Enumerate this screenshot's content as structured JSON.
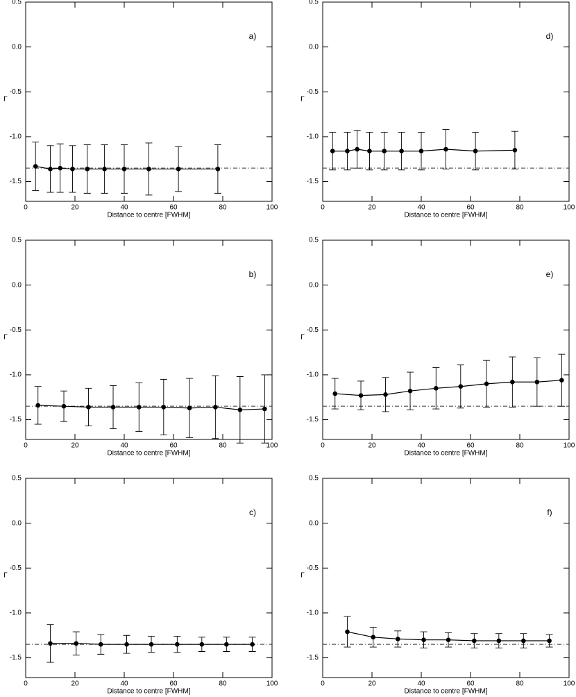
{
  "chart_data": [
    {
      "type": "line",
      "label": "a)",
      "xlabel": "Distance to centre [FWHM]",
      "ylabel": "Γ",
      "x": [
        4,
        10,
        14,
        19,
        25,
        32,
        40,
        50,
        62,
        78
      ],
      "values": [
        -1.33,
        -1.36,
        -1.35,
        -1.36,
        -1.36,
        -1.36,
        -1.36,
        -1.36,
        -1.36,
        -1.36
      ],
      "errors": [
        0.27,
        0.26,
        0.27,
        0.26,
        0.27,
        0.27,
        0.27,
        0.29,
        0.25,
        0.27
      ],
      "color": "#000000",
      "hline": -1.35,
      "xlim": [
        0,
        100
      ],
      "ylim": [
        -1.72,
        0.5
      ],
      "xticks": [
        0,
        20,
        40,
        60,
        80,
        100
      ],
      "yticks": [
        0.5,
        {
          "value": 0,
          "label": "0.0"
        },
        -0.5,
        {
          "value": -1,
          "label": "-1.0"
        },
        -1.5
      ]
    },
    {
      "type": "line",
      "label": "b)",
      "xlabel": "Distance to centre [FWHM]",
      "ylabel": "Γ",
      "x": [
        5,
        15.5,
        25.5,
        35.5,
        46,
        56,
        66.5,
        77,
        87,
        97
      ],
      "values": [
        -1.34,
        -1.35,
        -1.36,
        -1.36,
        -1.36,
        -1.36,
        -1.37,
        -1.36,
        -1.39,
        -1.38
      ],
      "errors": [
        0.21,
        0.17,
        0.21,
        0.24,
        0.27,
        0.31,
        0.33,
        0.35,
        0.37,
        0.38
      ],
      "color": "#000000",
      "hline": -1.35,
      "xlim": [
        0,
        100
      ],
      "ylim": [
        -1.72,
        0.5
      ],
      "xticks": [
        0,
        20,
        40,
        60,
        80,
        100
      ],
      "yticks": [
        0.5,
        {
          "value": 0,
          "label": "0.0"
        },
        -0.5,
        {
          "value": -1,
          "label": "-1.0"
        },
        -1.5
      ]
    },
    {
      "type": "line",
      "label": "c)",
      "xlabel": "Distance to centre [FWHM]",
      "ylabel": "Γ",
      "x": [
        10,
        20.5,
        30.5,
        41,
        51,
        61.5,
        71.5,
        81.5,
        92
      ],
      "values": [
        -1.34,
        -1.34,
        -1.35,
        -1.35,
        -1.35,
        -1.35,
        -1.35,
        -1.35,
        -1.35
      ],
      "errors": [
        0.21,
        0.13,
        0.11,
        0.1,
        0.09,
        0.09,
        0.08,
        0.08,
        0.08
      ],
      "color": "#000000",
      "hline": -1.35,
      "xlim": [
        0,
        100
      ],
      "ylim": [
        -1.72,
        0.5
      ],
      "xticks": [
        0,
        20,
        40,
        60,
        80,
        100
      ],
      "yticks": [
        0.5,
        {
          "value": 0,
          "label": "0.0"
        },
        -0.5,
        {
          "value": -1,
          "label": "-1.0"
        },
        -1.5
      ]
    },
    {
      "type": "line",
      "label": "d)",
      "xlabel": "Distance to centre [FWHM]",
      "ylabel": "Γ",
      "x": [
        4,
        10,
        14,
        19,
        25,
        32,
        40,
        50,
        62,
        78
      ],
      "values": [
        -1.16,
        -1.16,
        -1.14,
        -1.16,
        -1.16,
        -1.16,
        -1.16,
        -1.14,
        -1.16,
        -1.15
      ],
      "errors": [
        0.21,
        0.21,
        0.21,
        0.21,
        0.21,
        0.21,
        0.21,
        0.22,
        0.21,
        0.21
      ],
      "color": "#000000",
      "hline": -1.35,
      "xlim": [
        0,
        100
      ],
      "ylim": [
        -1.72,
        0.5
      ],
      "xticks": [
        0,
        20,
        40,
        60,
        80,
        100
      ],
      "yticks": [
        0.5,
        {
          "value": 0,
          "label": "0.0"
        },
        -0.5,
        {
          "value": -1,
          "label": "-1.0"
        },
        -1.5
      ]
    },
    {
      "type": "line",
      "label": "e)",
      "xlabel": "Distance to centre [FWHM]",
      "ylabel": "Γ",
      "x": [
        5,
        15.5,
        25.5,
        35.5,
        46,
        56,
        66.5,
        77,
        87,
        97
      ],
      "values": [
        -1.21,
        -1.23,
        -1.22,
        -1.18,
        -1.15,
        -1.13,
        -1.1,
        -1.08,
        -1.08,
        -1.06
      ],
      "errors": [
        0.17,
        0.16,
        0.19,
        0.21,
        0.23,
        0.24,
        0.26,
        0.28,
        0.27,
        0.29
      ],
      "color": "#000000",
      "hline": -1.35,
      "xlim": [
        0,
        100
      ],
      "ylim": [
        -1.72,
        0.5
      ],
      "xticks": [
        0,
        20,
        40,
        60,
        80,
        100
      ],
      "yticks": [
        0.5,
        {
          "value": 0,
          "label": "0.0"
        },
        -0.5,
        {
          "value": -1,
          "label": "-1.0"
        },
        -1.5
      ]
    },
    {
      "type": "line",
      "label": "f)",
      "xlabel": "Distance to centre [FWHM]",
      "ylabel": "Γ",
      "x": [
        10,
        20.5,
        30.5,
        41,
        51,
        61.5,
        71.5,
        81.5,
        92
      ],
      "values": [
        -1.21,
        -1.27,
        -1.29,
        -1.3,
        -1.3,
        -1.31,
        -1.31,
        -1.31,
        -1.31
      ],
      "errors": [
        0.17,
        0.11,
        0.09,
        0.09,
        0.08,
        0.08,
        0.08,
        0.08,
        0.07
      ],
      "color": "#000000",
      "hline": -1.35,
      "xlim": [
        0,
        100
      ],
      "ylim": [
        -1.72,
        0.5
      ],
      "xticks": [
        0,
        20,
        40,
        60,
        80,
        100
      ],
      "yticks": [
        0.5,
        {
          "value": 0,
          "label": "0.0"
        },
        -0.5,
        {
          "value": -1,
          "label": "-1.0"
        },
        -1.5
      ]
    }
  ]
}
